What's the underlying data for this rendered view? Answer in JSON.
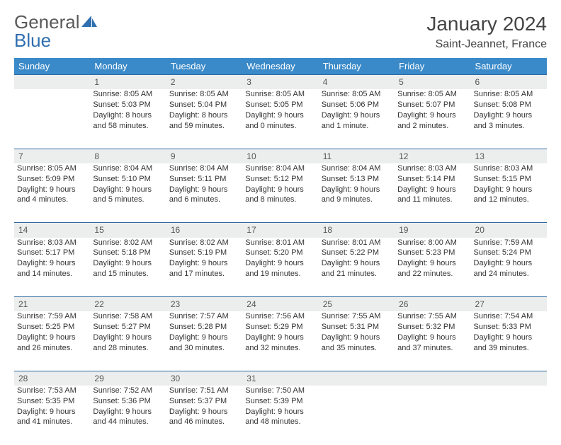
{
  "logo": {
    "word1": "General",
    "word2": "Blue"
  },
  "title": "January 2024",
  "location": "Saint-Jeannet, France",
  "colors": {
    "header_bg": "#3a8ac9",
    "header_text": "#ffffff",
    "daynum_bg": "#eceeee",
    "row_border": "#2e6aa0",
    "logo_gray": "#5a5a5a",
    "logo_blue": "#2f6fb0"
  },
  "weekdays": [
    "Sunday",
    "Monday",
    "Tuesday",
    "Wednesday",
    "Thursday",
    "Friday",
    "Saturday"
  ],
  "weeks": [
    {
      "nums": [
        "",
        "1",
        "2",
        "3",
        "4",
        "5",
        "6"
      ],
      "cells": [
        {
          "empty": true
        },
        {
          "sunrise": "Sunrise: 8:05 AM",
          "sunset": "Sunset: 5:03 PM",
          "day1": "Daylight: 8 hours",
          "day2": "and 58 minutes."
        },
        {
          "sunrise": "Sunrise: 8:05 AM",
          "sunset": "Sunset: 5:04 PM",
          "day1": "Daylight: 8 hours",
          "day2": "and 59 minutes."
        },
        {
          "sunrise": "Sunrise: 8:05 AM",
          "sunset": "Sunset: 5:05 PM",
          "day1": "Daylight: 9 hours",
          "day2": "and 0 minutes."
        },
        {
          "sunrise": "Sunrise: 8:05 AM",
          "sunset": "Sunset: 5:06 PM",
          "day1": "Daylight: 9 hours",
          "day2": "and 1 minute."
        },
        {
          "sunrise": "Sunrise: 8:05 AM",
          "sunset": "Sunset: 5:07 PM",
          "day1": "Daylight: 9 hours",
          "day2": "and 2 minutes."
        },
        {
          "sunrise": "Sunrise: 8:05 AM",
          "sunset": "Sunset: 5:08 PM",
          "day1": "Daylight: 9 hours",
          "day2": "and 3 minutes."
        }
      ]
    },
    {
      "nums": [
        "7",
        "8",
        "9",
        "10",
        "11",
        "12",
        "13"
      ],
      "cells": [
        {
          "sunrise": "Sunrise: 8:05 AM",
          "sunset": "Sunset: 5:09 PM",
          "day1": "Daylight: 9 hours",
          "day2": "and 4 minutes."
        },
        {
          "sunrise": "Sunrise: 8:04 AM",
          "sunset": "Sunset: 5:10 PM",
          "day1": "Daylight: 9 hours",
          "day2": "and 5 minutes."
        },
        {
          "sunrise": "Sunrise: 8:04 AM",
          "sunset": "Sunset: 5:11 PM",
          "day1": "Daylight: 9 hours",
          "day2": "and 6 minutes."
        },
        {
          "sunrise": "Sunrise: 8:04 AM",
          "sunset": "Sunset: 5:12 PM",
          "day1": "Daylight: 9 hours",
          "day2": "and 8 minutes."
        },
        {
          "sunrise": "Sunrise: 8:04 AM",
          "sunset": "Sunset: 5:13 PM",
          "day1": "Daylight: 9 hours",
          "day2": "and 9 minutes."
        },
        {
          "sunrise": "Sunrise: 8:03 AM",
          "sunset": "Sunset: 5:14 PM",
          "day1": "Daylight: 9 hours",
          "day2": "and 11 minutes."
        },
        {
          "sunrise": "Sunrise: 8:03 AM",
          "sunset": "Sunset: 5:15 PM",
          "day1": "Daylight: 9 hours",
          "day2": "and 12 minutes."
        }
      ]
    },
    {
      "nums": [
        "14",
        "15",
        "16",
        "17",
        "18",
        "19",
        "20"
      ],
      "cells": [
        {
          "sunrise": "Sunrise: 8:03 AM",
          "sunset": "Sunset: 5:17 PM",
          "day1": "Daylight: 9 hours",
          "day2": "and 14 minutes."
        },
        {
          "sunrise": "Sunrise: 8:02 AM",
          "sunset": "Sunset: 5:18 PM",
          "day1": "Daylight: 9 hours",
          "day2": "and 15 minutes."
        },
        {
          "sunrise": "Sunrise: 8:02 AM",
          "sunset": "Sunset: 5:19 PM",
          "day1": "Daylight: 9 hours",
          "day2": "and 17 minutes."
        },
        {
          "sunrise": "Sunrise: 8:01 AM",
          "sunset": "Sunset: 5:20 PM",
          "day1": "Daylight: 9 hours",
          "day2": "and 19 minutes."
        },
        {
          "sunrise": "Sunrise: 8:01 AM",
          "sunset": "Sunset: 5:22 PM",
          "day1": "Daylight: 9 hours",
          "day2": "and 21 minutes."
        },
        {
          "sunrise": "Sunrise: 8:00 AM",
          "sunset": "Sunset: 5:23 PM",
          "day1": "Daylight: 9 hours",
          "day2": "and 22 minutes."
        },
        {
          "sunrise": "Sunrise: 7:59 AM",
          "sunset": "Sunset: 5:24 PM",
          "day1": "Daylight: 9 hours",
          "day2": "and 24 minutes."
        }
      ]
    },
    {
      "nums": [
        "21",
        "22",
        "23",
        "24",
        "25",
        "26",
        "27"
      ],
      "cells": [
        {
          "sunrise": "Sunrise: 7:59 AM",
          "sunset": "Sunset: 5:25 PM",
          "day1": "Daylight: 9 hours",
          "day2": "and 26 minutes."
        },
        {
          "sunrise": "Sunrise: 7:58 AM",
          "sunset": "Sunset: 5:27 PM",
          "day1": "Daylight: 9 hours",
          "day2": "and 28 minutes."
        },
        {
          "sunrise": "Sunrise: 7:57 AM",
          "sunset": "Sunset: 5:28 PM",
          "day1": "Daylight: 9 hours",
          "day2": "and 30 minutes."
        },
        {
          "sunrise": "Sunrise: 7:56 AM",
          "sunset": "Sunset: 5:29 PM",
          "day1": "Daylight: 9 hours",
          "day2": "and 32 minutes."
        },
        {
          "sunrise": "Sunrise: 7:55 AM",
          "sunset": "Sunset: 5:31 PM",
          "day1": "Daylight: 9 hours",
          "day2": "and 35 minutes."
        },
        {
          "sunrise": "Sunrise: 7:55 AM",
          "sunset": "Sunset: 5:32 PM",
          "day1": "Daylight: 9 hours",
          "day2": "and 37 minutes."
        },
        {
          "sunrise": "Sunrise: 7:54 AM",
          "sunset": "Sunset: 5:33 PM",
          "day1": "Daylight: 9 hours",
          "day2": "and 39 minutes."
        }
      ]
    },
    {
      "nums": [
        "28",
        "29",
        "30",
        "31",
        "",
        "",
        ""
      ],
      "cells": [
        {
          "sunrise": "Sunrise: 7:53 AM",
          "sunset": "Sunset: 5:35 PM",
          "day1": "Daylight: 9 hours",
          "day2": "and 41 minutes."
        },
        {
          "sunrise": "Sunrise: 7:52 AM",
          "sunset": "Sunset: 5:36 PM",
          "day1": "Daylight: 9 hours",
          "day2": "and 44 minutes."
        },
        {
          "sunrise": "Sunrise: 7:51 AM",
          "sunset": "Sunset: 5:37 PM",
          "day1": "Daylight: 9 hours",
          "day2": "and 46 minutes."
        },
        {
          "sunrise": "Sunrise: 7:50 AM",
          "sunset": "Sunset: 5:39 PM",
          "day1": "Daylight: 9 hours",
          "day2": "and 48 minutes."
        },
        {
          "empty": true
        },
        {
          "empty": true
        },
        {
          "empty": true
        }
      ]
    }
  ]
}
